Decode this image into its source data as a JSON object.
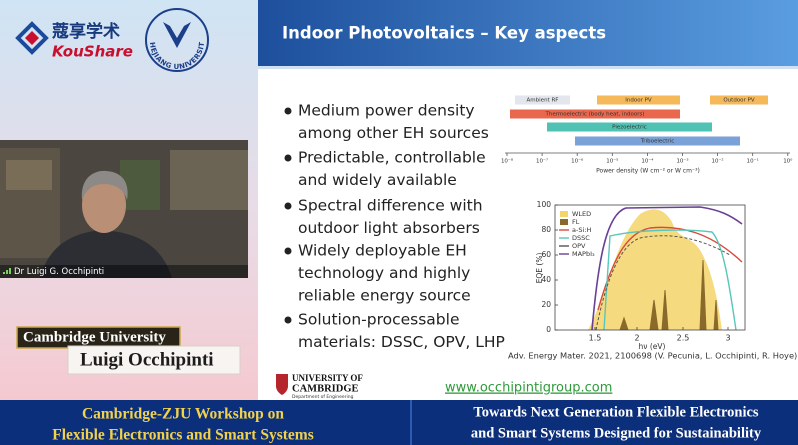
{
  "branding": {
    "koushare_cn": "蔻享学术",
    "koushare_en": "KouShare",
    "seal_text": "ZHEJIANG UNIVERSITY"
  },
  "video": {
    "speaker": "Dr Luigi G. Occhipinti"
  },
  "nameplate": {
    "affiliation": "Cambridge University",
    "name": "Luigi Occhipinti"
  },
  "slide": {
    "title": "Indoor Photovoltaics – Key aspects",
    "bullets": [
      [
        "Medium power density",
        "among other EH sources"
      ],
      [
        "Predictable, controllable",
        "and widely available"
      ],
      [
        "Spectral difference with",
        "outdoor light absorbers"
      ],
      [
        "Widely deployable EH",
        "technology and highly",
        "reliable energy source"
      ],
      [
        "Solution-processable",
        "materials: DSSC, OPV, LHP"
      ]
    ],
    "figure_top": {
      "bars": [
        "Ambient RF",
        "Indoor PV",
        "Outdoor PV",
        "Thermoelectric (body heat, indoors)",
        "Piezoelectric",
        "Triboelectric"
      ],
      "x_ticks": [
        "10⁻⁸",
        "10⁻⁷",
        "10⁻⁶",
        "10⁻⁵",
        "10⁻⁴",
        "10⁻³",
        "10⁻²",
        "10⁻¹",
        "10⁰"
      ],
      "x_label": "Power density (W cm⁻² or W cm⁻³)"
    },
    "figure_bottom": {
      "legend": [
        "WLED",
        "FL",
        "a-Si:H",
        "DSSC",
        "OPV",
        "MAPbI₃"
      ],
      "y_label": "EQE (%)",
      "y_ticks": [
        "0",
        "20",
        "40",
        "60",
        "80",
        "100"
      ],
      "x_ticks": [
        "1.5",
        "2",
        "2.5",
        "3"
      ],
      "x_label": "hν (eV)"
    },
    "citation": "Adv. Energy Mater. 2021, 2100698 (V. Pecunia, L. Occhipinti, R. Hoye)",
    "footer": {
      "university_line1": "UNIVERSITY OF",
      "university_line2": "CAMBRIDGE",
      "department": "Department of Engineering",
      "link": "www.occhipintigroup.com"
    }
  },
  "banner": {
    "left": [
      "Cambridge-ZJU Workshop on",
      "Flexible Electronics and Smart Systems"
    ],
    "right": [
      "Towards Next Generation Flexible Electronics",
      "and Smart Systems Designed for Sustainability"
    ]
  }
}
